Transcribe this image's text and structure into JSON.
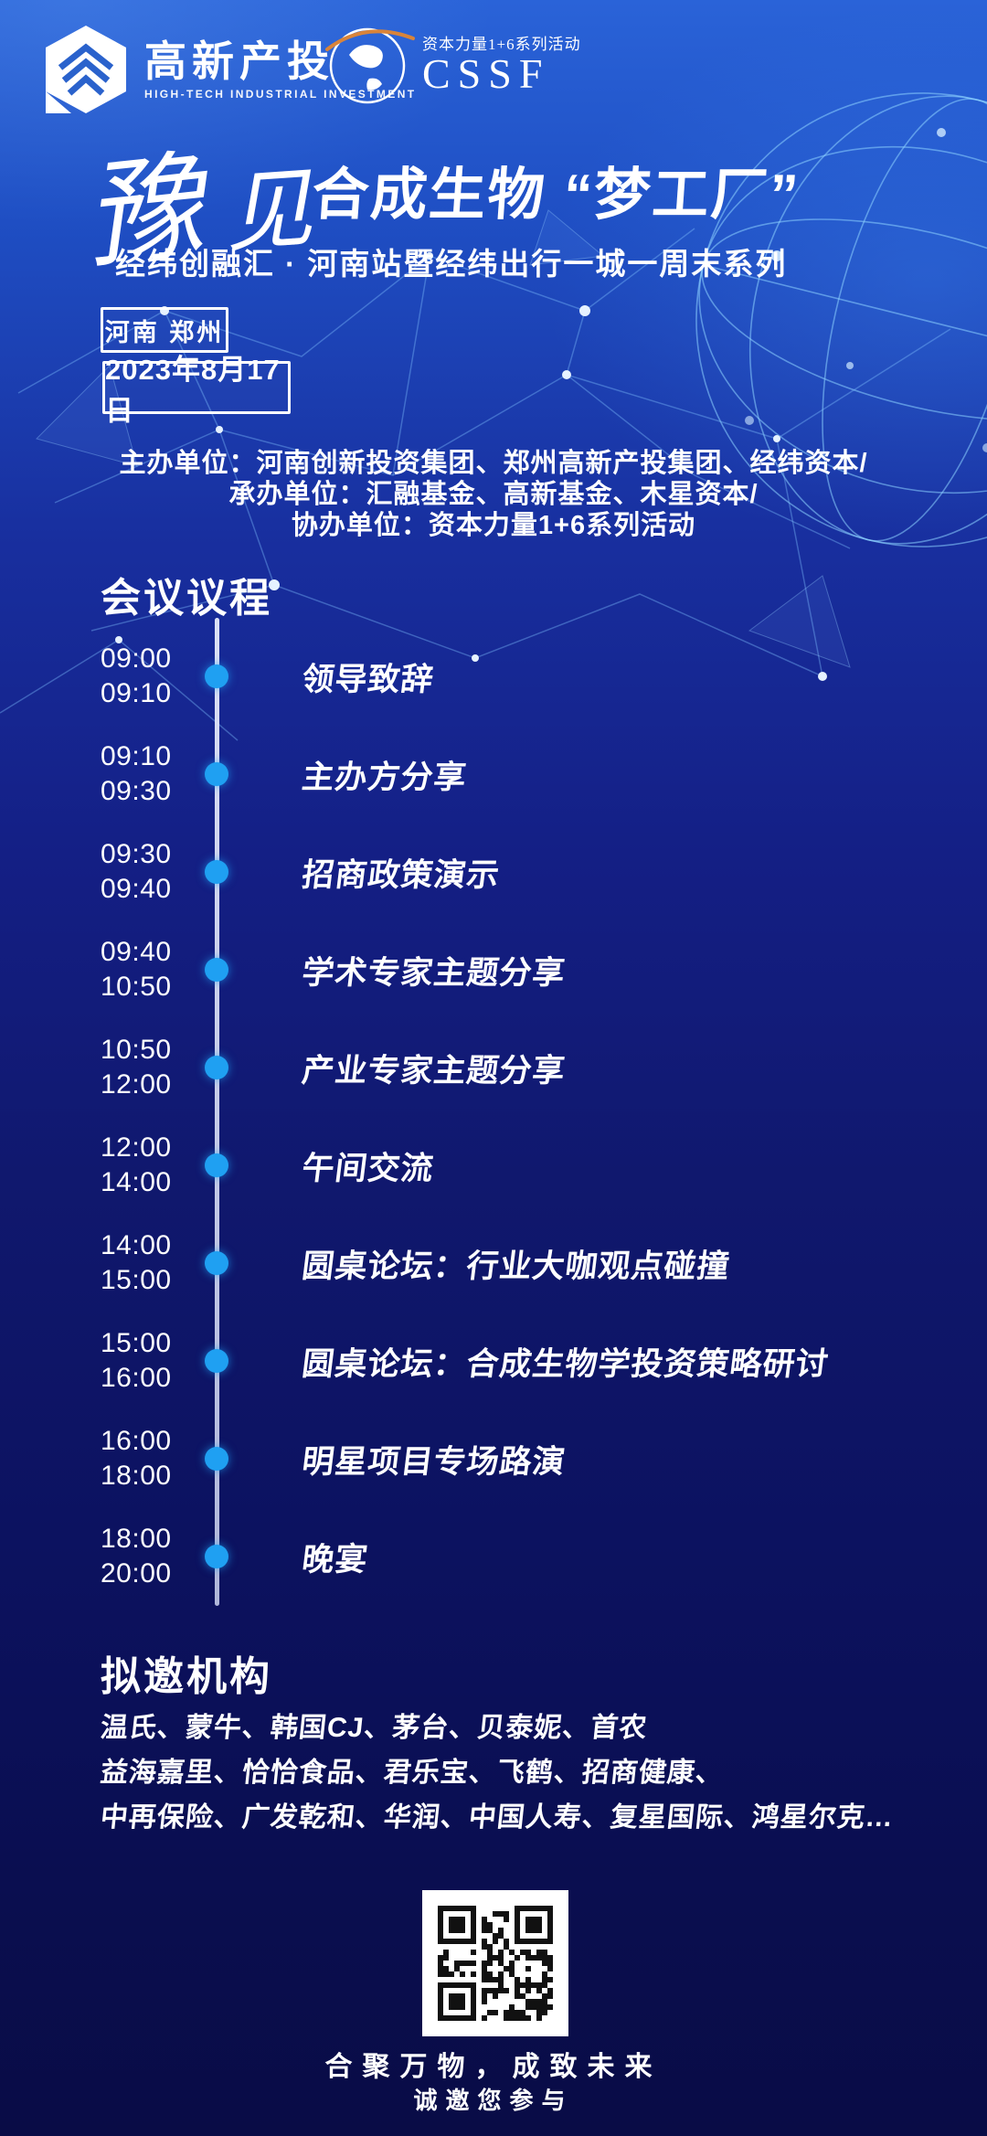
{
  "header": {
    "left_logo": {
      "name_cn": "高新产投",
      "name_en": "HIGH-TECH INDUSTRIAL INVESTMENT"
    },
    "right_logo": {
      "series": "资本力量1+6系列活动",
      "acronym": "CSSF"
    }
  },
  "title": {
    "calligraphy_yu": "豫",
    "calligraphy_jian": "见",
    "main": "合成生物 “梦工厂”",
    "subtitle": "经纬创融汇 · 河南站暨经纬出行一城一周末系列"
  },
  "badges": {
    "location": "河南 郑州",
    "date": "2023年8月17日"
  },
  "organizers": {
    "line1": "主办单位：河南创新投资集团、郑州高新产投集团、经纬资本/",
    "line2": "承办单位：汇融基金、高新基金、木星资本/",
    "line3": "协办单位：资本力量1+6系列活动"
  },
  "agenda": {
    "heading": "会议议程",
    "items": [
      {
        "start": "09:00",
        "end": "09:10",
        "title": "领导致辞"
      },
      {
        "start": "09:10",
        "end": "09:30",
        "title": "主办方分享"
      },
      {
        "start": "09:30",
        "end": "09:40",
        "title": "招商政策演示"
      },
      {
        "start": "09:40",
        "end": "10:50",
        "title": "学术专家主题分享"
      },
      {
        "start": "10:50",
        "end": "12:00",
        "title": "产业专家主题分享"
      },
      {
        "start": "12:00",
        "end": "14:00",
        "title": "午间交流"
      },
      {
        "start": "14:00",
        "end": "15:00",
        "title": "圆桌论坛：行业大咖观点碰撞"
      },
      {
        "start": "15:00",
        "end": "16:00",
        "title": "圆桌论坛：合成生物学投资策略研讨"
      },
      {
        "start": "16:00",
        "end": "18:00",
        "title": "明星项目专场路演"
      },
      {
        "start": "18:00",
        "end": "20:00",
        "title": "晚宴"
      }
    ]
  },
  "invited": {
    "heading": "拟邀机构",
    "lines": [
      "温氏、蒙牛、韩国CJ、茅台、贝泰妮、首农",
      "益海嘉里、恰恰食品、君乐宝、飞鹤、招商健康、",
      "中再保险、广发乾和、华润、中国人寿、复星国际、鸿星尔克…"
    ]
  },
  "footer": {
    "slogan": "合聚万物，成致未来",
    "invite": "诚邀您参与"
  },
  "colors": {
    "bg_top": "#2a63d8",
    "bg_bottom": "#090c46",
    "timeline_dot": "#1fa0f2",
    "timeline_line": "#d6dbf2",
    "cssf_arc_orange": "#d9843a",
    "qr_dark": "#111111"
  }
}
